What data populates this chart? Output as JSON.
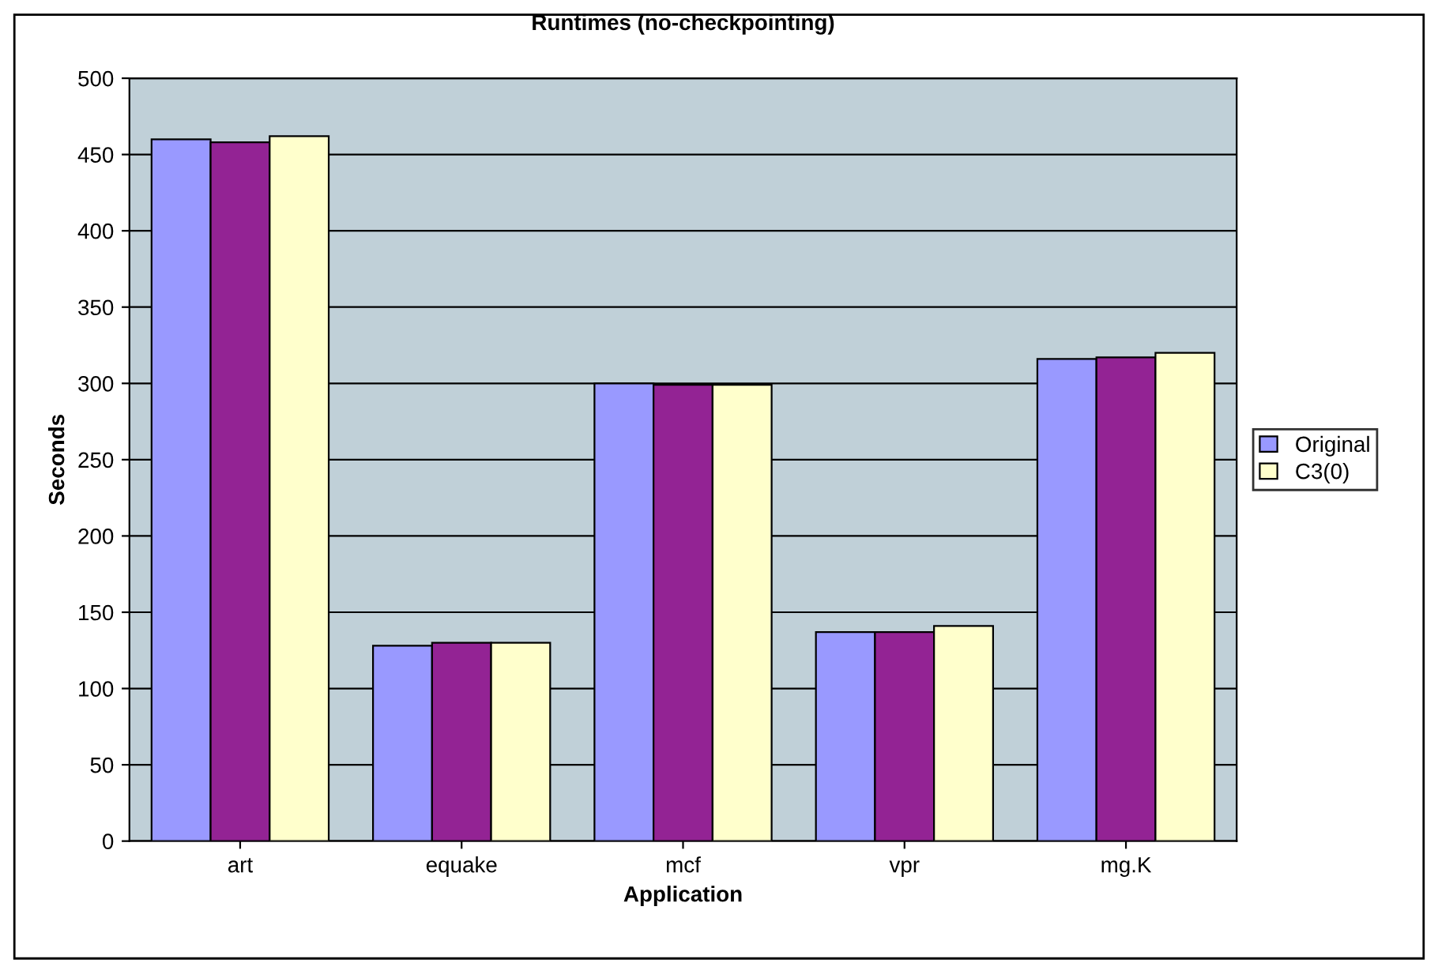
{
  "chart_data": {
    "type": "bar",
    "title": "Runtimes (no-checkpointing)",
    "xlabel": "Application",
    "ylabel": "Seconds",
    "categories": [
      "art",
      "equake",
      "mcf",
      "vpr",
      "mg.K"
    ],
    "series": [
      {
        "name": "Original",
        "color": "#9999ff",
        "values": [
          460,
          128,
          300,
          137,
          316
        ]
      },
      {
        "color": "#932394",
        "values": [
          458,
          130,
          299,
          137,
          317
        ]
      },
      {
        "name": "C3(0)",
        "color": "#ffffcc",
        "values": [
          462,
          130,
          299,
          141,
          320
        ]
      }
    ],
    "ylim": [
      0,
      500
    ],
    "yticks": [
      0,
      50,
      100,
      150,
      200,
      250,
      300,
      350,
      400,
      450,
      500
    ],
    "grid": "y",
    "legend": "right"
  }
}
